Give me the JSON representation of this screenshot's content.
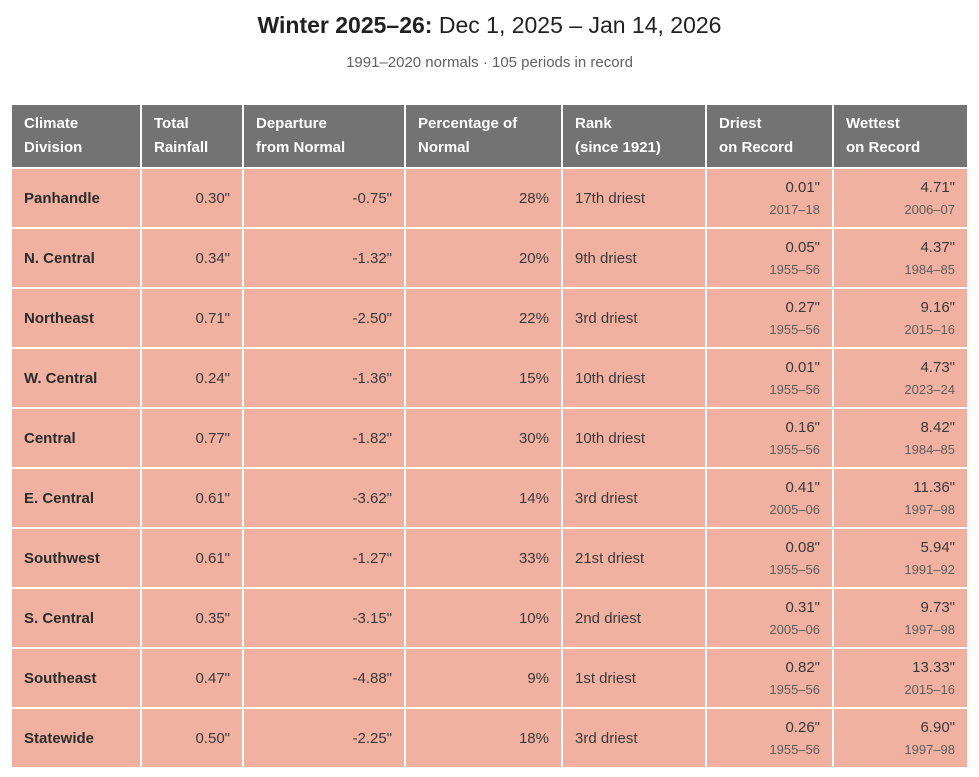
{
  "header": {
    "title_bold": "Winter 2025–26:",
    "title_rest": "Dec 1, 2025 – Jan 14, 2026",
    "subtitle": "1991–2020 normals · 105 periods in record"
  },
  "colors": {
    "header_bg": "#737373",
    "cell_bg": "#f0b1a0",
    "page_bg": "#ffffff"
  },
  "table": {
    "columns": [
      {
        "line1": "Climate",
        "line2": "Division"
      },
      {
        "line1": "Total",
        "line2": "Rainfall"
      },
      {
        "line1": "Departure",
        "line2": "from Normal"
      },
      {
        "line1": "Percentage of",
        "line2": "Normal"
      },
      {
        "line1": "Rank",
        "line2": "(since 1921)"
      },
      {
        "line1": "Driest",
        "line2": "on Record"
      },
      {
        "line1": "Wettest",
        "line2": "on Record"
      }
    ],
    "rows": [
      {
        "division": "Panhandle",
        "total": "0.30\"",
        "departure": "-0.75\"",
        "percent": "28%",
        "rank": "17th driest",
        "driest_value": "0.01\"",
        "driest_year": "2017–18",
        "wettest_value": "4.71\"",
        "wettest_year": "2006–07"
      },
      {
        "division": "N. Central",
        "total": "0.34\"",
        "departure": "-1.32\"",
        "percent": "20%",
        "rank": "9th driest",
        "driest_value": "0.05\"",
        "driest_year": "1955–56",
        "wettest_value": "4.37\"",
        "wettest_year": "1984–85"
      },
      {
        "division": "Northeast",
        "total": "0.71\"",
        "departure": "-2.50\"",
        "percent": "22%",
        "rank": "3rd driest",
        "driest_value": "0.27\"",
        "driest_year": "1955–56",
        "wettest_value": "9.16\"",
        "wettest_year": "2015–16"
      },
      {
        "division": "W. Central",
        "total": "0.24\"",
        "departure": "-1.36\"",
        "percent": "15%",
        "rank": "10th driest",
        "driest_value": "0.01\"",
        "driest_year": "1955–56",
        "wettest_value": "4.73\"",
        "wettest_year": "2023–24"
      },
      {
        "division": "Central",
        "total": "0.77\"",
        "departure": "-1.82\"",
        "percent": "30%",
        "rank": "10th driest",
        "driest_value": "0.16\"",
        "driest_year": "1955–56",
        "wettest_value": "8.42\"",
        "wettest_year": "1984–85"
      },
      {
        "division": "E. Central",
        "total": "0.61\"",
        "departure": "-3.62\"",
        "percent": "14%",
        "rank": "3rd driest",
        "driest_value": "0.41\"",
        "driest_year": "2005–06",
        "wettest_value": "11.36\"",
        "wettest_year": "1997–98"
      },
      {
        "division": "Southwest",
        "total": "0.61\"",
        "departure": "-1.27\"",
        "percent": "33%",
        "rank": "21st driest",
        "driest_value": "0.08\"",
        "driest_year": "1955–56",
        "wettest_value": "5.94\"",
        "wettest_year": "1991–92"
      },
      {
        "division": "S. Central",
        "total": "0.35\"",
        "departure": "-3.15\"",
        "percent": "10%",
        "rank": "2nd driest",
        "driest_value": "0.31\"",
        "driest_year": "2005–06",
        "wettest_value": "9.73\"",
        "wettest_year": "1997–98"
      },
      {
        "division": "Southeast",
        "total": "0.47\"",
        "departure": "-4.88\"",
        "percent": "9%",
        "rank": "1st driest",
        "driest_value": "0.82\"",
        "driest_year": "1955–56",
        "wettest_value": "13.33\"",
        "wettest_year": "2015–16"
      },
      {
        "division": "Statewide",
        "total": "0.50\"",
        "departure": "-2.25\"",
        "percent": "18%",
        "rank": "3rd driest",
        "driest_value": "0.26\"",
        "driest_year": "1955–56",
        "wettest_value": "6.90\"",
        "wettest_year": "1997–98"
      }
    ]
  },
  "chart_data": {
    "type": "table",
    "title": "Winter 2025–26: Dec 1, 2025 – Jan 14, 2026",
    "subtitle": "1991–2020 normals · 105 periods in record",
    "columns": [
      "Climate Division",
      "Total Rainfall",
      "Departure from Normal",
      "Percentage of Normal",
      "Rank (since 1921)",
      "Driest on Record",
      "Wettest on Record"
    ],
    "rows": [
      {
        "division": "Panhandle",
        "total_rainfall_in": 0.3,
        "departure_in": -0.75,
        "percent_of_normal": 28,
        "rank": "17th driest",
        "driest_in": 0.01,
        "driest_period": "2017–18",
        "wettest_in": 4.71,
        "wettest_period": "2006–07"
      },
      {
        "division": "N. Central",
        "total_rainfall_in": 0.34,
        "departure_in": -1.32,
        "percent_of_normal": 20,
        "rank": "9th driest",
        "driest_in": 0.05,
        "driest_period": "1955–56",
        "wettest_in": 4.37,
        "wettest_period": "1984–85"
      },
      {
        "division": "Northeast",
        "total_rainfall_in": 0.71,
        "departure_in": -2.5,
        "percent_of_normal": 22,
        "rank": "3rd driest",
        "driest_in": 0.27,
        "driest_period": "1955–56",
        "wettest_in": 9.16,
        "wettest_period": "2015–16"
      },
      {
        "division": "W. Central",
        "total_rainfall_in": 0.24,
        "departure_in": -1.36,
        "percent_of_normal": 15,
        "rank": "10th driest",
        "driest_in": 0.01,
        "driest_period": "1955–56",
        "wettest_in": 4.73,
        "wettest_period": "2023–24"
      },
      {
        "division": "Central",
        "total_rainfall_in": 0.77,
        "departure_in": -1.82,
        "percent_of_normal": 30,
        "rank": "10th driest",
        "driest_in": 0.16,
        "driest_period": "1955–56",
        "wettest_in": 8.42,
        "wettest_period": "1984–85"
      },
      {
        "division": "E. Central",
        "total_rainfall_in": 0.61,
        "departure_in": -3.62,
        "percent_of_normal": 14,
        "rank": "3rd driest",
        "driest_in": 0.41,
        "driest_period": "2005–06",
        "wettest_in": 11.36,
        "wettest_period": "1997–98"
      },
      {
        "division": "Southwest",
        "total_rainfall_in": 0.61,
        "departure_in": -1.27,
        "percent_of_normal": 33,
        "rank": "21st driest",
        "driest_in": 0.08,
        "driest_period": "1955–56",
        "wettest_in": 5.94,
        "wettest_period": "1991–92"
      },
      {
        "division": "S. Central",
        "total_rainfall_in": 0.35,
        "departure_in": -3.15,
        "percent_of_normal": 10,
        "rank": "2nd driest",
        "driest_in": 0.31,
        "driest_period": "2005–06",
        "wettest_in": 9.73,
        "wettest_period": "1997–98"
      },
      {
        "division": "Southeast",
        "total_rainfall_in": 0.47,
        "departure_in": -4.88,
        "percent_of_normal": 9,
        "rank": "1st driest",
        "driest_in": 0.82,
        "driest_period": "1955–56",
        "wettest_in": 13.33,
        "wettest_period": "2015–16"
      },
      {
        "division": "Statewide",
        "total_rainfall_in": 0.5,
        "departure_in": -2.25,
        "percent_of_normal": 18,
        "rank": "3rd driest",
        "driest_in": 0.26,
        "driest_period": "1955–56",
        "wettest_in": 6.9,
        "wettest_period": "1997–98"
      }
    ]
  }
}
